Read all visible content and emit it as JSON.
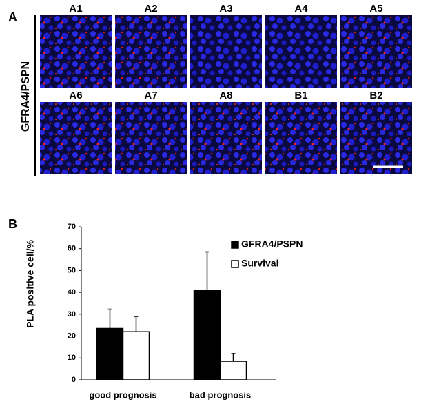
{
  "panel_a": {
    "label": "A",
    "ylabel": "GFRA4/PSPN",
    "images": [
      "A1",
      "A2",
      "A3",
      "A4",
      "A5",
      "A6",
      "A7",
      "A8",
      "B1",
      "B2"
    ]
  },
  "chart_data": {
    "type": "bar",
    "panel_label": "B",
    "ylabel": "PLA positive cell/%",
    "categories": [
      "good prognosis",
      "bad prognosis"
    ],
    "series": [
      {
        "name": "GFRA4/PSPN",
        "color": "#000000",
        "values": [
          23.5,
          41
        ],
        "errors": [
          8.8,
          17.5
        ]
      },
      {
        "name": "Survival",
        "color": "#ffffff",
        "values": [
          22,
          8.5
        ],
        "errors": [
          7,
          3.5
        ]
      }
    ],
    "ylim": [
      0,
      70
    ],
    "yticks": [
      0,
      10,
      20,
      30,
      40,
      50,
      60,
      70
    ],
    "grid": false,
    "legend": "upper right"
  }
}
